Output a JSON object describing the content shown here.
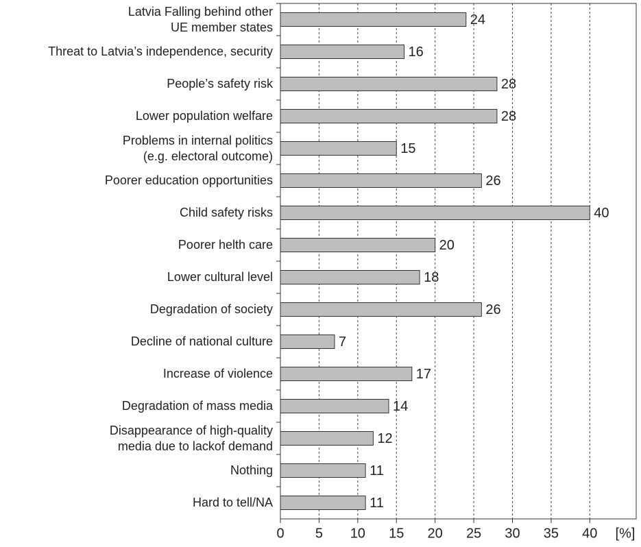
{
  "chart_data": {
    "type": "bar",
    "orientation": "horizontal",
    "categories": [
      "Latvia Falling behind other\nUE member states",
      "Threat to Latvia’s independence, security",
      "People’s safety risk",
      "Lower population welfare",
      "Problems in internal politics\n(e.g. electoral outcome)",
      "Poorer education opportunities",
      "Child safety risks",
      "Poorer helth care",
      "Lower cultural level",
      "Degradation of society",
      "Decline of national culture",
      "Increase of violence",
      "Degradation of mass media",
      "Disappearance of high-quality\nmedia due to lackof demand",
      "Nothing",
      "Hard to tell/NA"
    ],
    "values": [
      24,
      16,
      28,
      28,
      15,
      26,
      40,
      20,
      18,
      26,
      7,
      17,
      14,
      12,
      11,
      11
    ],
    "color": "#bdbdbd",
    "x_label": "[%]",
    "xlim": [
      0,
      46
    ],
    "xticks": [
      0,
      5,
      10,
      15,
      20,
      25,
      30,
      35,
      40
    ],
    "grid": true
  }
}
